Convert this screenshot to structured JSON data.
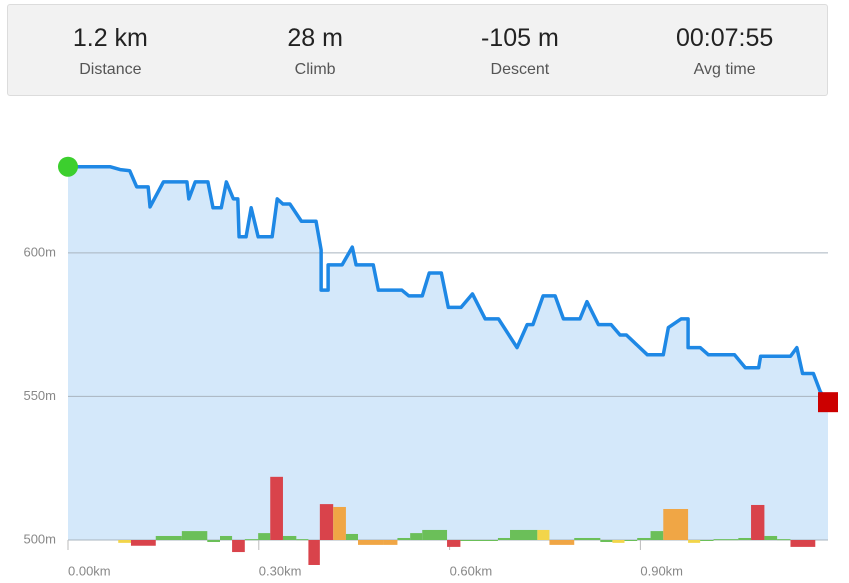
{
  "stats": [
    {
      "value": "1.2 km",
      "label": "Distance"
    },
    {
      "value": "28 m",
      "label": "Climb"
    },
    {
      "value": "-105 m",
      "label": "Descent"
    },
    {
      "value": "00:07:55",
      "label": "Avg time"
    }
  ],
  "chart_data": {
    "type": "area",
    "x": [
      0,
      0.066,
      0.082,
      0.097,
      0.108,
      0.126,
      0.129,
      0.15,
      0.187,
      0.19,
      0.2,
      0.22,
      0.228,
      0.241,
      0.249,
      0.26,
      0.267,
      0.269,
      0.28,
      0.288,
      0.299,
      0.321,
      0.329,
      0.338,
      0.349,
      0.367,
      0.39,
      0.398,
      0.398,
      0.409,
      0.409,
      0.431,
      0.447,
      0.453,
      0.48,
      0.488,
      0.525,
      0.536,
      0.557,
      0.568,
      0.587,
      0.598,
      0.618,
      0.636,
      0.656,
      0.677,
      0.706,
      0.722,
      0.731,
      0.747,
      0.766,
      0.779,
      0.805,
      0.816,
      0.834,
      0.854,
      0.868,
      0.878,
      0.911,
      0.936,
      0.944,
      0.964,
      0.975,
      0.975,
      0.994,
      1.007,
      1.048,
      1.065,
      1.086,
      1.089,
      1.136,
      1.146,
      1.155,
      1.172,
      1.183,
      1.195
    ],
    "values": [
      630,
      630,
      629,
      628.6,
      623,
      623,
      616,
      624.7,
      624.7,
      618.8,
      624.7,
      624.7,
      615.7,
      615.7,
      624.7,
      618.8,
      618.8,
      605.6,
      605.6,
      615.7,
      605.6,
      605.6,
      618.8,
      617,
      617,
      611,
      611,
      601,
      587,
      587,
      595.8,
      595.8,
      602,
      595.8,
      595.8,
      587,
      587,
      585,
      585,
      593,
      593,
      581,
      581,
      585.7,
      577,
      577,
      567,
      575,
      575,
      585,
      585,
      577,
      577,
      583,
      575,
      575,
      571.4,
      571.4,
      564.5,
      564.5,
      574,
      577,
      577,
      567,
      567,
      564.5,
      564.5,
      560,
      560,
      564,
      564,
      567,
      558,
      558,
      551.6,
      548
    ],
    "color": "#1e88e5",
    "fill": "#d4e8fa",
    "start_color": "#3ccf2e",
    "end_color": "#cc0000",
    "grade_bars": {
      "bins": [
        0.079,
        0.099,
        0.138,
        0.179,
        0.219,
        0.239,
        0.258,
        0.278,
        0.299,
        0.318,
        0.338,
        0.359,
        0.378,
        0.396,
        0.417,
        0.437,
        0.456,
        0.496,
        0.518,
        0.538,
        0.557,
        0.596,
        0.617,
        0.676,
        0.695,
        0.738,
        0.757,
        0.796,
        0.837,
        0.856,
        0.875,
        0.895,
        0.916,
        0.936,
        0.975,
        0.994,
        1.015,
        1.054,
        1.074,
        1.095,
        1.115,
        1.136,
        1.175
      ],
      "values": [
        -1,
        -2,
        1.4,
        3.1,
        -0.7,
        1.4,
        -4.2,
        0.3,
        2.4,
        22,
        1.4,
        0.3,
        -8.7,
        12.5,
        11.5,
        2.1,
        -1.7,
        -1.7,
        0.7,
        2.4,
        3.5,
        -2.4,
        -0.3,
        0.7,
        3.5,
        3.5,
        -1.7,
        0.7,
        -0.7,
        -1,
        -0.3,
        0.7,
        3.1,
        10.8,
        -1,
        -0.3,
        0.3,
        0.7,
        12.2,
        1.4,
        0.3,
        -2.4
      ],
      "colors": [
        "#f2d54a",
        "#d9434b",
        "#6bbf59",
        "#6bbf59",
        "#6bbf59",
        "#6bbf59",
        "#d9434b",
        "#6bbf59",
        "#6bbf59",
        "#d9434b",
        "#6bbf59",
        "#6bbf59",
        "#d9434b",
        "#d9434b",
        "#f0a645",
        "#6bbf59",
        "#f0a645",
        "#f0a645",
        "#6bbf59",
        "#6bbf59",
        "#6bbf59",
        "#d9434b",
        "#6bbf59",
        "#6bbf59",
        "#6bbf59",
        "#f2d54a",
        "#f0a645",
        "#6bbf59",
        "#6bbf59",
        "#f2d54a",
        "#6bbf59",
        "#6bbf59",
        "#6bbf59",
        "#f0a645",
        "#f2d54a",
        "#6bbf59",
        "#6bbf59",
        "#6bbf59",
        "#d9434b",
        "#6bbf59",
        "#6bbf59",
        "#d9434b"
      ]
    },
    "xlim": [
      0,
      1.195
    ],
    "ylim": [
      500,
      640
    ],
    "xticks": [
      {
        "value": 0,
        "label": "0.00km"
      },
      {
        "value": 0.3,
        "label": "0.30km"
      },
      {
        "value": 0.6,
        "label": "0.60km"
      },
      {
        "value": 0.9,
        "label": "0.90km"
      }
    ],
    "yticks": [
      {
        "value": 500,
        "label": "500m"
      },
      {
        "value": 550,
        "label": "550m"
      },
      {
        "value": 600,
        "label": "600m"
      }
    ],
    "grid": true
  }
}
